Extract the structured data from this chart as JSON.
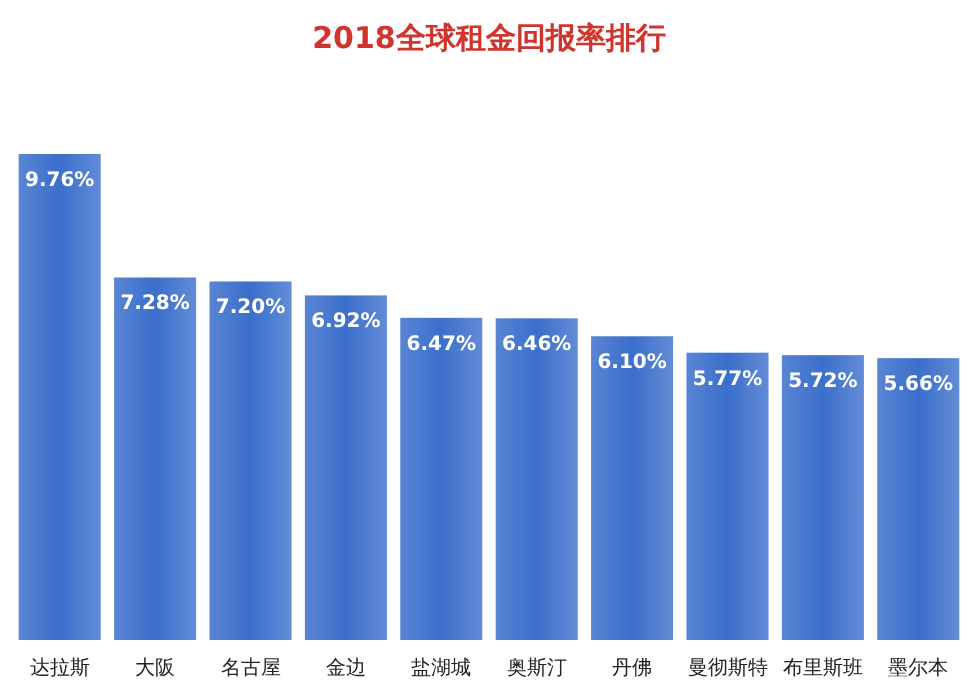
{
  "chart_data": {
    "type": "bar",
    "title": "2018全球租金回报率排行",
    "categories": [
      "达拉斯",
      "大阪",
      "名古屋",
      "金边",
      "盐湖城",
      "奥斯汀",
      "丹佛",
      "曼彻斯特",
      "布里斯班",
      "墨尔本"
    ],
    "values": [
      9.76,
      7.28,
      7.2,
      6.92,
      6.47,
      6.46,
      6.1,
      5.77,
      5.72,
      5.66
    ],
    "value_labels": [
      "9.76%",
      "7.28%",
      "7.20%",
      "6.92%",
      "6.47%",
      "6.46%",
      "6.10%",
      "5.77%",
      "5.72%",
      "5.66%"
    ],
    "color": "#3b6fcb"
  }
}
